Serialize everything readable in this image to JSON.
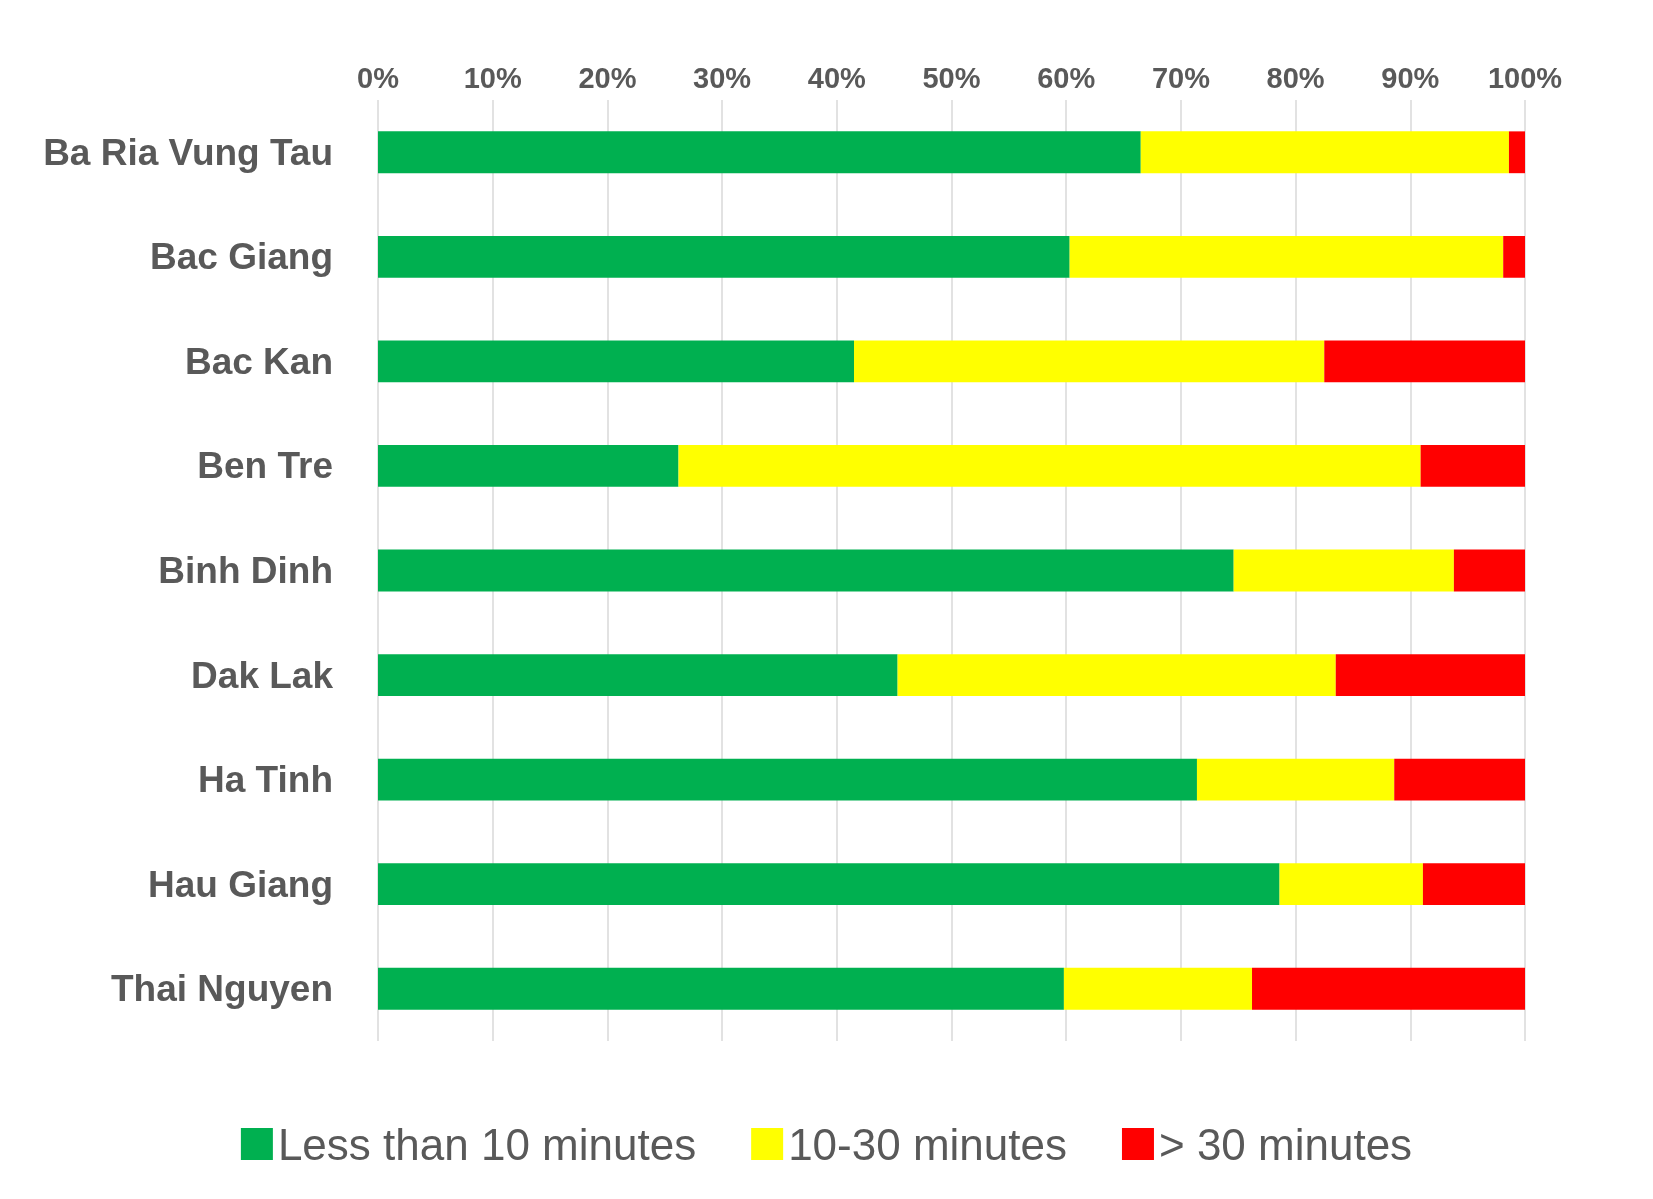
{
  "chart_data": {
    "type": "bar",
    "orientation": "horizontal",
    "stacked": true,
    "categories": [
      "Ba Ria Vung Tau",
      "Bac Giang",
      "Bac Kan",
      "Ben Tre",
      "Binh Dinh",
      "Dak Lak",
      "Ha Tinh",
      "Hau Giang",
      "Thai Nguyen"
    ],
    "series": [
      {
        "name": "Less than 10 minutes",
        "color": "#00b050",
        "values": [
          66.5,
          60.3,
          41.5,
          26.2,
          74.6,
          45.3,
          71.4,
          78.6,
          59.8
        ]
      },
      {
        "name": "10-30 minutes",
        "color": "#ffff00",
        "values": [
          32.1,
          37.8,
          41.0,
          64.7,
          19.2,
          38.2,
          17.2,
          12.5,
          16.4
        ]
      },
      {
        "name": "> 30 minutes",
        "color": "#ff0000",
        "values": [
          1.4,
          1.9,
          17.5,
          9.1,
          6.2,
          16.5,
          11.4,
          8.9,
          23.8
        ]
      }
    ],
    "xlim": [
      0,
      100
    ],
    "xticks": [
      {
        "value": 0,
        "label": "0%"
      },
      {
        "value": 10,
        "label": "10%"
      },
      {
        "value": 20,
        "label": "20%"
      },
      {
        "value": 30,
        "label": "30%"
      },
      {
        "value": 40,
        "label": "40%"
      },
      {
        "value": 50,
        "label": "50%"
      },
      {
        "value": 60,
        "label": "60%"
      },
      {
        "value": 70,
        "label": "70%"
      },
      {
        "value": 80,
        "label": "80%"
      },
      {
        "value": 90,
        "label": "90%"
      },
      {
        "value": 100,
        "label": "100%"
      }
    ],
    "grid": "x",
    "legend": "bottom"
  }
}
